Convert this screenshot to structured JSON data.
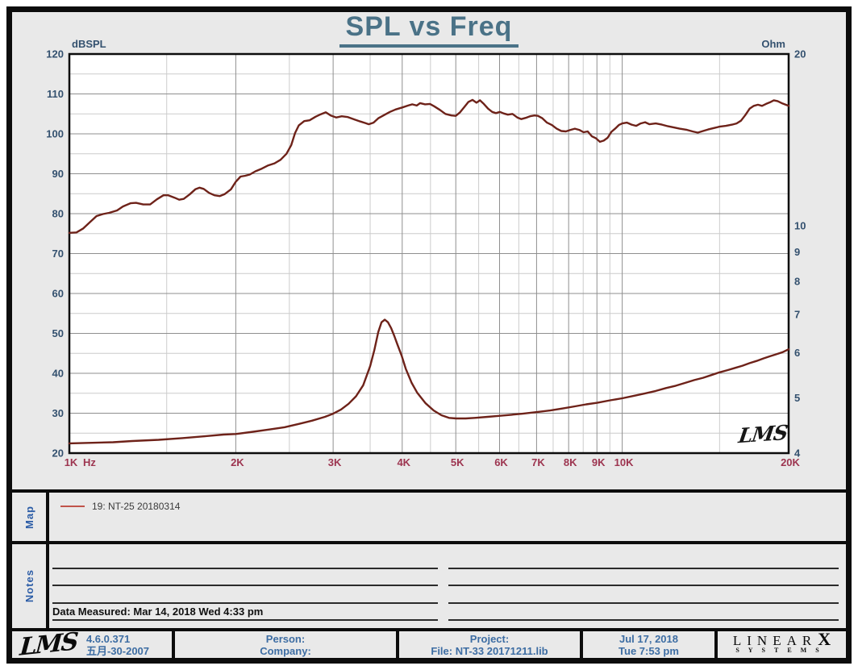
{
  "header": {
    "title": "SPL vs Freq"
  },
  "watermark": "LMS",
  "map": {
    "label": "Map",
    "legend": [
      {
        "swatch_color": "#c0544a",
        "label": "19: NT-25 20180314"
      }
    ]
  },
  "notes": {
    "label": "Notes",
    "data_measured": "Data Measured: Mar 14, 2018  Wed  4:33 pm"
  },
  "footer": {
    "lms_logo": "LMS",
    "version": "4.6.0.371",
    "date_code": "五月-30-2007",
    "person_label": "Person:",
    "company_label": "Company:",
    "project_label": "Project:",
    "file_label": "File: NT-33 20171211.lib",
    "date": "Jul 17, 2018",
    "time": "Tue  7:53 pm",
    "brand_linear": "LINEAR",
    "brand_x": "X",
    "brand_systems": "SYSTEMS"
  },
  "chart_data": {
    "type": "line",
    "title": "SPL vs Freq",
    "grid": true,
    "legend_position": "map-strip-below-chart",
    "x_axis": {
      "unit": "Hz",
      "scale": "log",
      "min": 1000,
      "max": 20000,
      "major_ticks": [
        {
          "v": 1000,
          "label": "1K"
        },
        {
          "v": 2000,
          "label": "2K"
        },
        {
          "v": 3000,
          "label": "3K"
        },
        {
          "v": 4000,
          "label": "4K"
        },
        {
          "v": 5000,
          "label": "5K"
        },
        {
          "v": 6000,
          "label": "6K"
        },
        {
          "v": 7000,
          "label": "7K"
        },
        {
          "v": 8000,
          "label": "8K"
        },
        {
          "v": 9000,
          "label": "9K"
        },
        {
          "v": 10000,
          "label": "10K"
        },
        {
          "v": 20000,
          "label": "20K"
        }
      ],
      "minor_ticks": [
        1500,
        2500,
        3500,
        4500,
        5500,
        6500,
        7500,
        8500,
        9500,
        15000
      ]
    },
    "y_left": {
      "label": "dBSPL",
      "min": 20,
      "max": 120,
      "major_step": 10,
      "minor_step": 5,
      "ticks": [
        120,
        110,
        100,
        90,
        80,
        70,
        60,
        50,
        40,
        30,
        20
      ]
    },
    "y_right": {
      "label": "Ohm",
      "scale": "log",
      "min": 4,
      "max": 20,
      "ticks": [
        20,
        10,
        9,
        8,
        7,
        6,
        5,
        4
      ]
    },
    "series": [
      {
        "name": "19: NT-25 20180314 (SPL)",
        "axis": "left",
        "color": "#6e2219",
        "points": [
          [
            1000,
            75.2
          ],
          [
            1030,
            75.3
          ],
          [
            1060,
            76.3
          ],
          [
            1090,
            77.9
          ],
          [
            1120,
            79.4
          ],
          [
            1150,
            79.9
          ],
          [
            1180,
            80.2
          ],
          [
            1220,
            80.8
          ],
          [
            1250,
            81.8
          ],
          [
            1290,
            82.6
          ],
          [
            1320,
            82.7
          ],
          [
            1360,
            82.3
          ],
          [
            1400,
            82.3
          ],
          [
            1440,
            83.6
          ],
          [
            1480,
            84.6
          ],
          [
            1510,
            84.6
          ],
          [
            1550,
            84.0
          ],
          [
            1580,
            83.5
          ],
          [
            1610,
            83.7
          ],
          [
            1650,
            84.8
          ],
          [
            1690,
            86.1
          ],
          [
            1720,
            86.5
          ],
          [
            1750,
            86.2
          ],
          [
            1790,
            85.2
          ],
          [
            1830,
            84.6
          ],
          [
            1870,
            84.4
          ],
          [
            1910,
            84.9
          ],
          [
            1960,
            86.1
          ],
          [
            2000,
            88.0
          ],
          [
            2040,
            89.3
          ],
          [
            2080,
            89.5
          ],
          [
            2120,
            89.8
          ],
          [
            2170,
            90.6
          ],
          [
            2230,
            91.3
          ],
          [
            2290,
            92.1
          ],
          [
            2350,
            92.6
          ],
          [
            2410,
            93.5
          ],
          [
            2470,
            95.0
          ],
          [
            2520,
            97.2
          ],
          [
            2560,
            100.2
          ],
          [
            2600,
            102.1
          ],
          [
            2660,
            103.2
          ],
          [
            2720,
            103.4
          ],
          [
            2790,
            104.3
          ],
          [
            2850,
            104.9
          ],
          [
            2910,
            105.4
          ],
          [
            2970,
            104.6
          ],
          [
            3040,
            104.1
          ],
          [
            3110,
            104.4
          ],
          [
            3190,
            104.2
          ],
          [
            3280,
            103.6
          ],
          [
            3360,
            103.1
          ],
          [
            3430,
            102.7
          ],
          [
            3480,
            102.4
          ],
          [
            3550,
            102.8
          ],
          [
            3620,
            103.9
          ],
          [
            3710,
            104.7
          ],
          [
            3800,
            105.5
          ],
          [
            3890,
            106.1
          ],
          [
            4000,
            106.6
          ],
          [
            4100,
            107.1
          ],
          [
            4170,
            107.4
          ],
          [
            4250,
            107.1
          ],
          [
            4310,
            107.7
          ],
          [
            4400,
            107.4
          ],
          [
            4490,
            107.5
          ],
          [
            4570,
            106.9
          ],
          [
            4680,
            106.0
          ],
          [
            4790,
            105.0
          ],
          [
            4910,
            104.6
          ],
          [
            5000,
            104.5
          ],
          [
            5090,
            105.4
          ],
          [
            5180,
            106.7
          ],
          [
            5270,
            108.0
          ],
          [
            5360,
            108.5
          ],
          [
            5450,
            107.8
          ],
          [
            5530,
            108.4
          ],
          [
            5620,
            107.5
          ],
          [
            5720,
            106.3
          ],
          [
            5820,
            105.5
          ],
          [
            5910,
            105.2
          ],
          [
            6010,
            105.5
          ],
          [
            6110,
            105.1
          ],
          [
            6210,
            104.8
          ],
          [
            6330,
            105.0
          ],
          [
            6460,
            104.1
          ],
          [
            6570,
            103.7
          ],
          [
            6690,
            104.0
          ],
          [
            6810,
            104.4
          ],
          [
            6940,
            104.6
          ],
          [
            7040,
            104.5
          ],
          [
            7170,
            103.9
          ],
          [
            7310,
            102.8
          ],
          [
            7460,
            102.2
          ],
          [
            7610,
            101.3
          ],
          [
            7760,
            100.7
          ],
          [
            7910,
            100.6
          ],
          [
            8060,
            101.0
          ],
          [
            8210,
            101.3
          ],
          [
            8360,
            101.0
          ],
          [
            8510,
            100.4
          ],
          [
            8660,
            100.6
          ],
          [
            8810,
            99.4
          ],
          [
            8960,
            98.9
          ],
          [
            9110,
            98.0
          ],
          [
            9260,
            98.3
          ],
          [
            9410,
            99.0
          ],
          [
            9560,
            100.5
          ],
          [
            9710,
            101.3
          ],
          [
            9860,
            102.2
          ],
          [
            10000,
            102.6
          ],
          [
            10200,
            102.8
          ],
          [
            10400,
            102.3
          ],
          [
            10600,
            102.0
          ],
          [
            10800,
            102.6
          ],
          [
            11000,
            102.9
          ],
          [
            11200,
            102.4
          ],
          [
            11500,
            102.6
          ],
          [
            11800,
            102.3
          ],
          [
            12100,
            101.9
          ],
          [
            12400,
            101.6
          ],
          [
            12700,
            101.3
          ],
          [
            13100,
            101.0
          ],
          [
            13400,
            100.6
          ],
          [
            13700,
            100.3
          ],
          [
            14000,
            100.7
          ],
          [
            14300,
            101.1
          ],
          [
            14700,
            101.5
          ],
          [
            15000,
            101.8
          ],
          [
            15400,
            102.0
          ],
          [
            15800,
            102.3
          ],
          [
            16100,
            102.6
          ],
          [
            16400,
            103.3
          ],
          [
            16700,
            104.7
          ],
          [
            17000,
            106.3
          ],
          [
            17300,
            107.0
          ],
          [
            17600,
            107.3
          ],
          [
            17900,
            107.0
          ],
          [
            18200,
            107.5
          ],
          [
            18500,
            107.9
          ],
          [
            18800,
            108.4
          ],
          [
            19100,
            108.2
          ],
          [
            19500,
            107.6
          ],
          [
            20000,
            107.0
          ]
        ]
      },
      {
        "name": "19: NT-25 20180314 (Impedance)",
        "axis": "right",
        "color": "#6e2219",
        "points": [
          [
            1000,
            4.16
          ],
          [
            1100,
            4.17
          ],
          [
            1200,
            4.18
          ],
          [
            1300,
            4.2
          ],
          [
            1450,
            4.22
          ],
          [
            1600,
            4.25
          ],
          [
            1750,
            4.28
          ],
          [
            1900,
            4.31
          ],
          [
            2000,
            4.32
          ],
          [
            2150,
            4.36
          ],
          [
            2300,
            4.4
          ],
          [
            2450,
            4.44
          ],
          [
            2600,
            4.5
          ],
          [
            2750,
            4.56
          ],
          [
            2900,
            4.63
          ],
          [
            3000,
            4.69
          ],
          [
            3100,
            4.77
          ],
          [
            3200,
            4.88
          ],
          [
            3300,
            5.03
          ],
          [
            3400,
            5.26
          ],
          [
            3500,
            5.68
          ],
          [
            3560,
            6.05
          ],
          [
            3620,
            6.52
          ],
          [
            3670,
            6.78
          ],
          [
            3720,
            6.85
          ],
          [
            3770,
            6.78
          ],
          [
            3820,
            6.62
          ],
          [
            3870,
            6.42
          ],
          [
            3920,
            6.2
          ],
          [
            3990,
            5.93
          ],
          [
            4060,
            5.62
          ],
          [
            4160,
            5.31
          ],
          [
            4260,
            5.1
          ],
          [
            4410,
            4.89
          ],
          [
            4560,
            4.75
          ],
          [
            4710,
            4.66
          ],
          [
            4860,
            4.61
          ],
          [
            5010,
            4.6
          ],
          [
            5210,
            4.6
          ],
          [
            5410,
            4.61
          ],
          [
            5710,
            4.63
          ],
          [
            6010,
            4.65
          ],
          [
            6310,
            4.67
          ],
          [
            6610,
            4.69
          ],
          [
            7010,
            4.72
          ],
          [
            7410,
            4.75
          ],
          [
            7810,
            4.79
          ],
          [
            8210,
            4.83
          ],
          [
            8610,
            4.87
          ],
          [
            9010,
            4.9
          ],
          [
            9510,
            4.95
          ],
          [
            10000,
            4.99
          ],
          [
            10500,
            5.04
          ],
          [
            11000,
            5.09
          ],
          [
            11500,
            5.14
          ],
          [
            12000,
            5.2
          ],
          [
            12500,
            5.25
          ],
          [
            13000,
            5.31
          ],
          [
            13500,
            5.37
          ],
          [
            14000,
            5.42
          ],
          [
            14500,
            5.48
          ],
          [
            15000,
            5.54
          ],
          [
            15500,
            5.59
          ],
          [
            16000,
            5.64
          ],
          [
            16500,
            5.69
          ],
          [
            17000,
            5.75
          ],
          [
            17500,
            5.8
          ],
          [
            18000,
            5.86
          ],
          [
            18500,
            5.91
          ],
          [
            19000,
            5.96
          ],
          [
            19500,
            6.01
          ],
          [
            20000,
            6.08
          ]
        ]
      }
    ]
  }
}
